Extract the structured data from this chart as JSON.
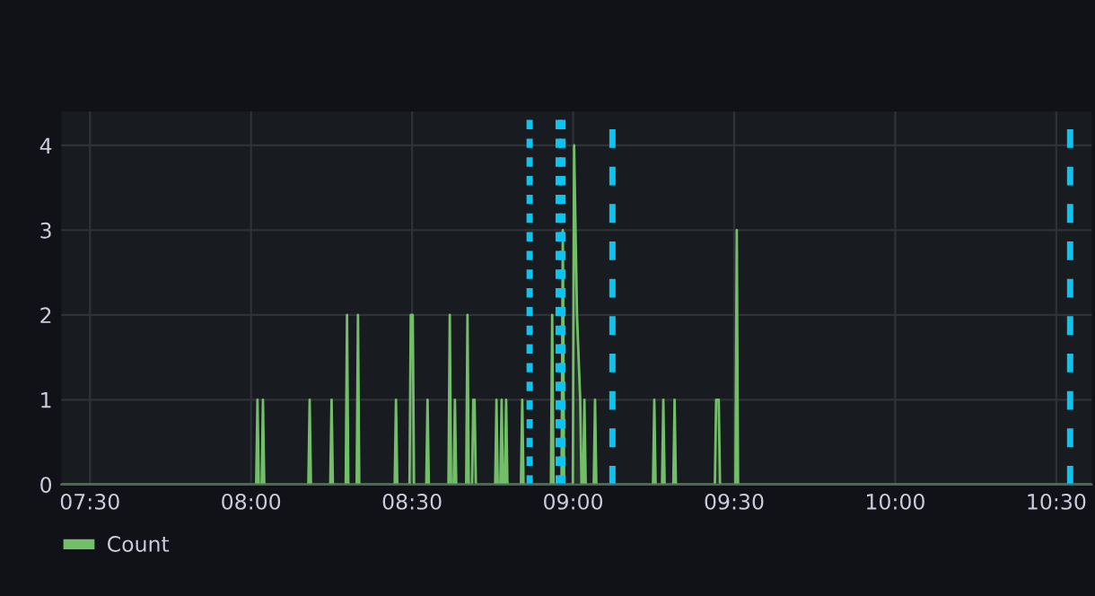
{
  "chart_data": {
    "type": "area",
    "series": [
      {
        "name": "Count",
        "color": "#73bf69",
        "x": [
          7.411,
          8.016,
          8.02,
          8.024,
          8.033,
          8.037,
          8.041,
          8.178,
          8.182,
          8.186,
          8.246,
          8.25,
          8.254,
          8.294,
          8.298,
          8.302,
          8.328,
          8.332,
          8.336,
          8.446,
          8.45,
          8.454,
          8.492,
          8.496,
          8.502,
          8.506,
          8.544,
          8.548,
          8.552,
          8.613,
          8.617,
          8.621,
          8.629,
          8.633,
          8.637,
          8.668,
          8.672,
          8.676,
          8.686,
          8.69,
          8.694,
          8.698,
          8.758,
          8.762,
          8.766,
          8.774,
          8.778,
          8.782,
          8.788,
          8.792,
          8.796,
          8.838,
          8.842,
          8.846,
          8.931,
          8.935,
          8.939,
          8.964,
          8.968,
          8.972,
          8.999,
          9.003,
          9.012,
          9.022,
          9.026,
          9.031,
          9.035,
          9.039,
          9.064,
          9.068,
          9.072,
          9.248,
          9.252,
          9.256,
          9.276,
          9.28,
          9.284,
          9.311,
          9.315,
          9.319,
          9.44,
          9.444,
          9.452,
          9.456,
          9.504,
          9.508,
          9.512,
          10.61
        ],
        "values": [
          0,
          0,
          1,
          0,
          0,
          1,
          0,
          0,
          1,
          0,
          0,
          1,
          0,
          0,
          2,
          0,
          0,
          2,
          0,
          0,
          1,
          0,
          0,
          2,
          2,
          0,
          0,
          1,
          0,
          0,
          2,
          0,
          0,
          1,
          0,
          0,
          2,
          0,
          0,
          1,
          1,
          0,
          0,
          1,
          0,
          0,
          1,
          0,
          0,
          1,
          0,
          0,
          1,
          0,
          0,
          2,
          0,
          0,
          3,
          0,
          0,
          4,
          2,
          1,
          0,
          0,
          1,
          0,
          0,
          1,
          0,
          0,
          1,
          0,
          0,
          1,
          0,
          0,
          1,
          0,
          0,
          1,
          1,
          0,
          0,
          3,
          0,
          0
        ]
      }
    ],
    "xlim": [
      7.411,
      10.61
    ],
    "xticks": [
      {
        "value": 7.5,
        "label": "07:30"
      },
      {
        "value": 8,
        "label": "08:00"
      },
      {
        "value": 8.5,
        "label": "08:30"
      },
      {
        "value": 9,
        "label": "09:00"
      },
      {
        "value": 9.5,
        "label": "09:30"
      },
      {
        "value": 10,
        "label": "10:00"
      },
      {
        "value": 10.5,
        "label": "10:30"
      }
    ],
    "ylim": [
      0,
      4.4
    ],
    "yticks": [
      0,
      1,
      2,
      3,
      4
    ],
    "ref_lines": [
      {
        "axis": "x",
        "value": 8.865,
        "color": "#0cc4f0",
        "line_style": "dotted"
      },
      {
        "axis": "x",
        "value": 8.955,
        "color": "#0cc4f0",
        "line_style": "dotted"
      },
      {
        "axis": "x",
        "value": 8.967,
        "color": "#0cc4f0",
        "line_style": "dotted"
      },
      {
        "axis": "x",
        "value": 9.122,
        "color": "#0cc4f0",
        "line_style": "dashed"
      },
      {
        "axis": "x",
        "value": 10.543,
        "color": "#0cc4f0",
        "line_style": "dashed"
      }
    ],
    "grid": true,
    "legend": "bottom left"
  }
}
